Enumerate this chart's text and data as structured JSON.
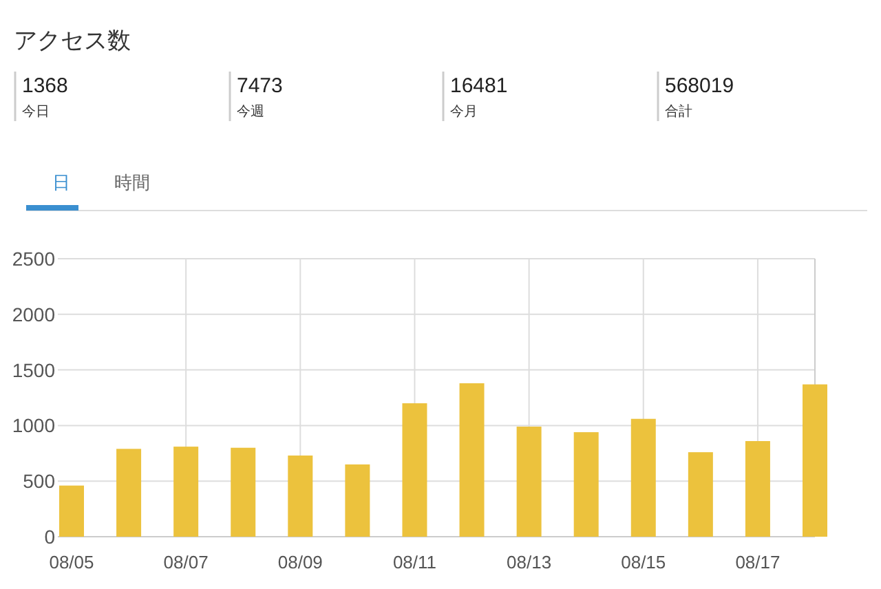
{
  "chart_data": [
    {
      "type": "other",
      "title": "アクセス数",
      "annotations": [
        "1368",
        "今日",
        "7473",
        "今週",
        "16481",
        "今月",
        "568019",
        "合計",
        "日",
        "時間"
      ]
    },
    {
      "type": "bar",
      "categories": [
        "08/05",
        null,
        "08/07",
        null,
        "08/09",
        null,
        "08/11",
        null,
        "08/13",
        null,
        "08/15",
        null,
        "08/17",
        null
      ],
      "values": [
        460,
        790,
        810,
        800,
        730,
        650,
        1200,
        1380,
        990,
        940,
        1060,
        760,
        860,
        1370
      ],
      "color": "#ecc23d",
      "ylim": [
        0,
        2500
      ],
      "yticks": [
        0,
        500,
        1000,
        1500,
        2000,
        2500
      ],
      "grid": true
    }
  ]
}
